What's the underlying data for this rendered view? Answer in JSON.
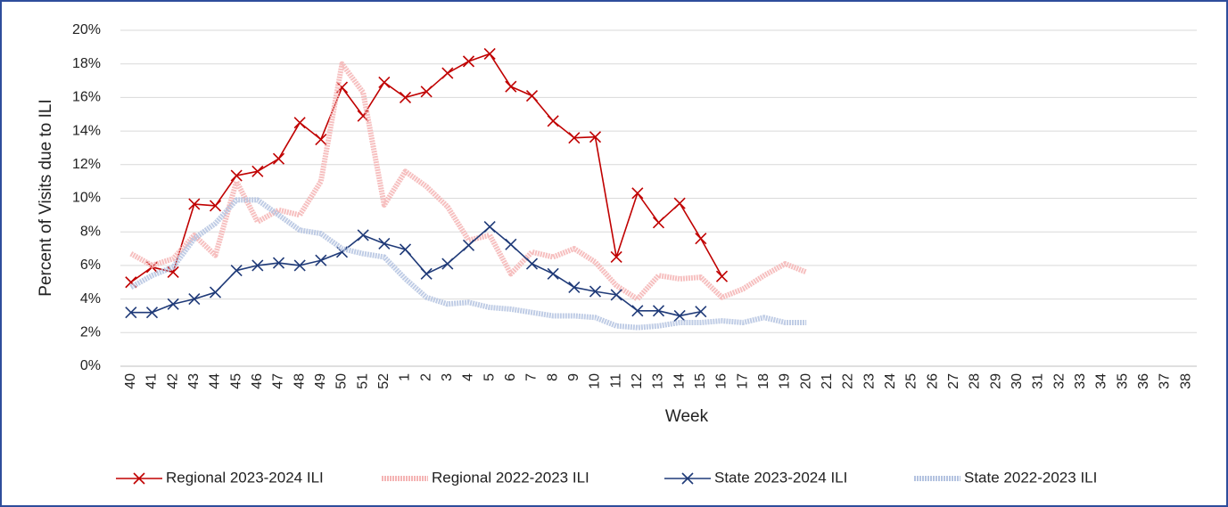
{
  "chart_data": {
    "type": "line",
    "x_label": "Week",
    "y_label": "Percent of Visits due to ILI",
    "categories": [
      "40",
      "41",
      "42",
      "43",
      "44",
      "45",
      "46",
      "47",
      "48",
      "49",
      "50",
      "51",
      "52",
      "1",
      "2",
      "3",
      "4",
      "5",
      "6",
      "7",
      "8",
      "9",
      "10",
      "11",
      "12",
      "13",
      "14",
      "15",
      "16",
      "17",
      "18",
      "19",
      "20",
      "21",
      "22",
      "23",
      "24",
      "25",
      "26",
      "27",
      "28",
      "29",
      "30",
      "31",
      "32",
      "33",
      "34",
      "35",
      "36",
      "37",
      "38"
    ],
    "ylim": [
      0,
      20
    ],
    "yticks": [
      {
        "value": 0,
        "label": "0%"
      },
      {
        "value": 2,
        "label": "2%"
      },
      {
        "value": 4,
        "label": "4%"
      },
      {
        "value": 6,
        "label": "6%"
      },
      {
        "value": 8,
        "label": "8%"
      },
      {
        "value": 10,
        "label": "10%"
      },
      {
        "value": 12,
        "label": "12%"
      },
      {
        "value": 14,
        "label": "14%"
      },
      {
        "value": 16,
        "label": "16%"
      },
      {
        "value": 18,
        "label": "18%"
      },
      {
        "value": 20,
        "label": "20%"
      }
    ],
    "grid": true,
    "legend": "bottom",
    "series": [
      {
        "name": "Regional 2023-2024 ILI",
        "color": "#c00000",
        "marker": "x",
        "values": [
          5.0,
          5.9,
          5.6,
          9.65,
          9.55,
          11.35,
          11.6,
          12.35,
          14.5,
          13.5,
          16.6,
          14.9,
          16.9,
          16.0,
          16.35,
          17.45,
          18.15,
          18.6,
          16.65,
          16.1,
          14.6,
          13.6,
          13.65,
          6.5,
          10.3,
          8.55,
          9.7,
          7.6,
          5.35,
          null,
          null,
          null,
          null,
          null,
          null,
          null,
          null,
          null,
          null,
          null,
          null,
          null,
          null,
          null,
          null,
          null,
          null,
          null,
          null,
          null,
          null
        ]
      },
      {
        "name": "Regional 2022-2023 ILI",
        "color": "#f4b4b4",
        "marker": "none",
        "values": [
          6.7,
          6.0,
          6.4,
          7.8,
          6.6,
          11.0,
          8.6,
          9.3,
          9.0,
          11.0,
          18.0,
          16.3,
          9.6,
          11.6,
          10.7,
          9.5,
          7.5,
          7.8,
          5.5,
          6.8,
          6.5,
          7.0,
          6.2,
          4.8,
          4.0,
          5.4,
          5.2,
          5.3,
          4.1,
          4.6,
          5.4,
          6.1,
          5.6,
          null,
          null,
          null,
          null,
          null,
          null,
          null,
          null,
          null,
          null,
          null,
          null,
          null,
          null,
          null,
          null,
          null,
          null
        ]
      },
      {
        "name": "State 2023-2024 ILI",
        "color": "#1f3a78",
        "marker": "x",
        "values": [
          3.2,
          3.2,
          3.7,
          4.0,
          4.4,
          5.7,
          6.0,
          6.15,
          6.0,
          6.3,
          6.8,
          7.8,
          7.3,
          6.95,
          5.5,
          6.1,
          7.2,
          8.3,
          7.25,
          6.1,
          5.5,
          4.7,
          4.45,
          4.25,
          3.3,
          3.3,
          3.0,
          3.25,
          null,
          null,
          null,
          null,
          null,
          null,
          null,
          null,
          null,
          null,
          null,
          null,
          null,
          null,
          null,
          null,
          null,
          null,
          null,
          null,
          null,
          null,
          null
        ]
      },
      {
        "name": "State 2022-2023 ILI",
        "color": "#b4c3e0",
        "marker": "none",
        "values": [
          4.7,
          5.4,
          5.9,
          7.6,
          8.5,
          9.9,
          9.9,
          9.0,
          8.1,
          7.9,
          7.0,
          6.7,
          6.5,
          5.2,
          4.1,
          3.7,
          3.8,
          3.5,
          3.4,
          3.2,
          3.0,
          3.0,
          2.9,
          2.4,
          2.3,
          2.4,
          2.6,
          2.6,
          2.7,
          2.6,
          2.9,
          2.6,
          2.6,
          null,
          null,
          null,
          null,
          null,
          null,
          null,
          null,
          null,
          null,
          null,
          null,
          null,
          null,
          null,
          null,
          null,
          null
        ]
      }
    ]
  }
}
